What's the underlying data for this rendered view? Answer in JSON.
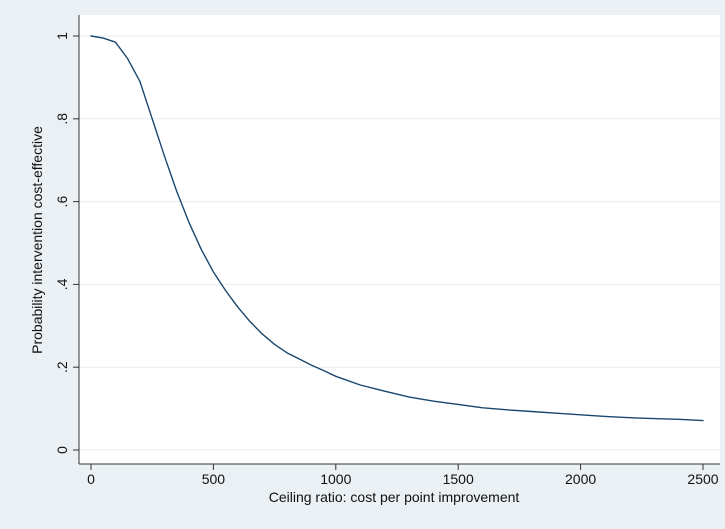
{
  "chart_data": {
    "type": "line",
    "title": "",
    "xlabel": "Ceiling ratio: cost per point improvement",
    "ylabel": "Probability intervention cost-effective",
    "xlim": [
      0,
      2500
    ],
    "ylim": [
      0,
      1
    ],
    "x_ticks": [
      0,
      500,
      1000,
      1500,
      2000,
      2500
    ],
    "x_tick_labels": [
      "0",
      "500",
      "1000",
      "1500",
      "2000",
      "2500"
    ],
    "y_ticks": [
      0,
      0.2,
      0.4,
      0.6,
      0.8,
      1
    ],
    "y_tick_labels": [
      "0",
      ".2",
      ".4",
      ".6",
      ".8",
      "1"
    ],
    "grid": "horizontal",
    "legend": "none",
    "colors": {
      "background": "#eaf0f3",
      "plot_area": "#ffffff",
      "grid": "#e6eef2",
      "line": "#1a476f"
    },
    "series": [
      {
        "x": [
          0,
          50,
          100,
          150,
          200,
          250,
          300,
          350,
          400,
          450,
          500,
          550,
          600,
          650,
          700,
          750,
          800,
          850,
          900,
          950,
          1000,
          1100,
          1200,
          1300,
          1400,
          1500,
          1600,
          1700,
          1800,
          1900,
          2000,
          2100,
          2200,
          2300,
          2400,
          2500
        ],
        "y": [
          1.0,
          0.995,
          0.985,
          0.945,
          0.89,
          0.8,
          0.71,
          0.625,
          0.55,
          0.485,
          0.43,
          0.385,
          0.345,
          0.31,
          0.28,
          0.255,
          0.235,
          0.22,
          0.205,
          0.192,
          0.178,
          0.157,
          0.142,
          0.128,
          0.118,
          0.11,
          0.102,
          0.097,
          0.093,
          0.089,
          0.085,
          0.081,
          0.078,
          0.076,
          0.074,
          0.071
        ]
      }
    ]
  }
}
